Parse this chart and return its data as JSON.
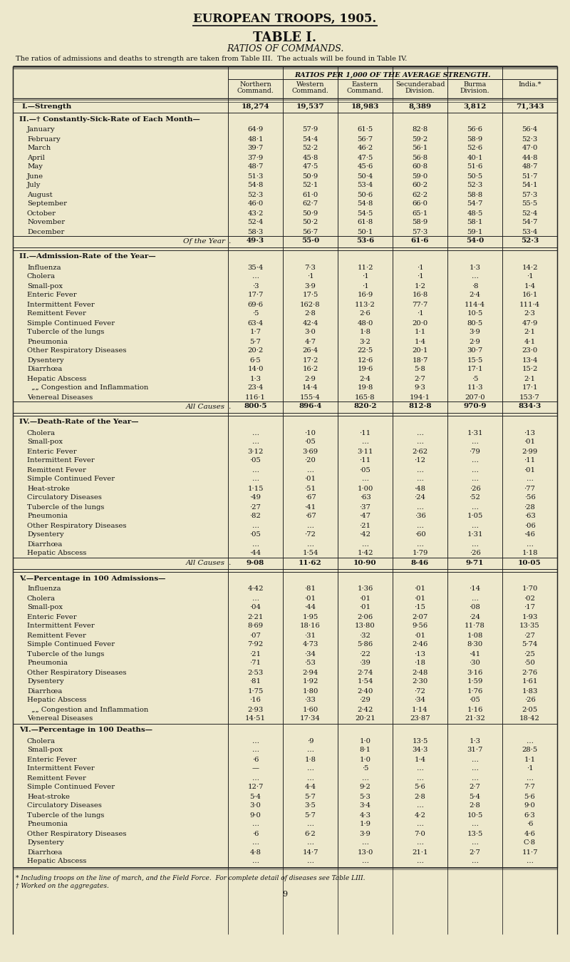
{
  "title1": "EUROPEAN TROOPS, 1905.",
  "title2": "TABLE I.",
  "subtitle": "RATIOS OF COMMANDS.",
  "note": "The ratios of admissions and deaths to strength are taken from Table III.  The actuals will be found in Table IV.",
  "col_header": "RATIOS PER 1,000 OF THE AVERAGE STRENGTH.",
  "columns": [
    "Northern\nCommand.",
    "Western\nCommand.",
    "Eastern\nCommand.",
    "Secunderabad\nDivision.",
    "Burma\nDivision.",
    "India.*"
  ],
  "bg_color": "#ede8cc",
  "sections": [
    {
      "label": "I.—Strength",
      "type": "strength",
      "dots": true,
      "values": [
        "18,274",
        "19,537",
        "18,983",
        "8,389",
        "3,812",
        "71,343"
      ]
    },
    {
      "label": "II.—† Constantly-Sick-Rate of Each Month—",
      "type": "section_header",
      "values": []
    },
    {
      "label": "January",
      "type": "data",
      "values": [
        "64·9",
        "57·9",
        "61·5",
        "82·8",
        "56·6",
        "56·4"
      ]
    },
    {
      "label": "February",
      "type": "data",
      "values": [
        "48·1",
        "54·4",
        "56·7",
        "59·2",
        "58·9",
        "52·3"
      ]
    },
    {
      "label": "March",
      "type": "data",
      "values": [
        "39·7",
        "52·2",
        "46·2",
        "56·1",
        "52·6",
        "47·0"
      ]
    },
    {
      "label": "April",
      "type": "data",
      "values": [
        "37·9",
        "45·8",
        "47·5",
        "56·8",
        "40·1",
        "44·8"
      ]
    },
    {
      "label": "May",
      "type": "data",
      "values": [
        "48·7",
        "47·5",
        "45·6",
        "60·8",
        "51·6",
        "48·7"
      ]
    },
    {
      "label": "June",
      "type": "data",
      "values": [
        "51·3",
        "50·9",
        "50·4",
        "59·0",
        "50·5",
        "51·7"
      ]
    },
    {
      "label": "July",
      "type": "data",
      "values": [
        "54·8",
        "52·1",
        "53·4",
        "60·2",
        "52·3",
        "54·1"
      ]
    },
    {
      "label": "August",
      "type": "data",
      "values": [
        "52·3",
        "61·0",
        "50·6",
        "62·2",
        "58·8",
        "57·3"
      ]
    },
    {
      "label": "September",
      "type": "data",
      "values": [
        "46·0",
        "62·7",
        "54·8",
        "66·0",
        "54·7",
        "55·5"
      ]
    },
    {
      "label": "October",
      "type": "data",
      "values": [
        "43·2",
        "50·9",
        "54·5",
        "65·1",
        "48·5",
        "52·4"
      ]
    },
    {
      "label": "November",
      "type": "data",
      "values": [
        "52·4",
        "50·2",
        "61·8",
        "58·9",
        "58·1",
        "54·7"
      ]
    },
    {
      "label": "December",
      "type": "data",
      "values": [
        "58·3",
        "56·7",
        "50·1",
        "57·3",
        "59·1",
        "53·4"
      ]
    },
    {
      "label": "Of the Year",
      "type": "subtotal",
      "values": [
        "49·3",
        "55·0",
        "53·6",
        "61·6",
        "54·0",
        "52·3"
      ]
    },
    {
      "label": "II.—Admission-Rate of the Year—",
      "type": "section_header",
      "values": []
    },
    {
      "label": "Influenza",
      "type": "data",
      "values": [
        "35·4",
        "7·3",
        "11·2",
        "·1",
        "1·3",
        "14·2"
      ]
    },
    {
      "label": "Cholera",
      "type": "data",
      "values": [
        "…",
        "·1",
        "·1",
        "·1",
        "…",
        "·1"
      ]
    },
    {
      "label": "Small-pox",
      "type": "data",
      "values": [
        "·3",
        "3·9",
        "·1",
        "1·2",
        "·8",
        "1·4"
      ]
    },
    {
      "label": "Enteric Fever",
      "type": "data",
      "values": [
        "17·7",
        "17·5",
        "16·9",
        "16·8",
        "2·4",
        "16·1"
      ]
    },
    {
      "label": "Intermittent Fever",
      "type": "data",
      "values": [
        "69·6",
        "162·8",
        "113·2",
        "77·7",
        "114·4",
        "111·4"
      ]
    },
    {
      "label": "Remittent Fever",
      "type": "data",
      "values": [
        "·5",
        "2·8",
        "2·6",
        "·1",
        "10·5",
        "2·3"
      ]
    },
    {
      "label": "Simple Continued Fever",
      "type": "data",
      "values": [
        "63·4",
        "42·4",
        "48·0",
        "20·0",
        "80·5",
        "47·9"
      ]
    },
    {
      "label": "Tubercle of the lungs",
      "type": "data",
      "values": [
        "1·7",
        "3·0",
        "1·8",
        "1·1",
        "3·9",
        "2·1"
      ]
    },
    {
      "label": "Pneumonia",
      "type": "data",
      "values": [
        "5·7",
        "4·7",
        "3·2",
        "1·4",
        "2·9",
        "4·1"
      ]
    },
    {
      "label": "Other Respiratory Diseases",
      "type": "data",
      "values": [
        "20·2",
        "26·4",
        "22·5",
        "20·1",
        "30·7",
        "23·0"
      ]
    },
    {
      "label": "Dysentery",
      "type": "data",
      "values": [
        "6·5",
        "17·2",
        "12·6",
        "18·7",
        "15·5",
        "13·4"
      ]
    },
    {
      "label": "Diarrhœa",
      "type": "data",
      "values": [
        "14·0",
        "16·2",
        "19·6",
        "5·8",
        "17·1",
        "15·2"
      ]
    },
    {
      "label": "Hepatic Abscess",
      "type": "data",
      "values": [
        "1·3",
        "2·9",
        "2·4",
        "2·7",
        "·5",
        "2·1"
      ]
    },
    {
      "label": "  „„ Congestion and Inflammation",
      "type": "data",
      "values": [
        "23·4",
        "14·4",
        "19·8",
        "9·3",
        "11·3",
        "17·1"
      ]
    },
    {
      "label": "Venereal Diseases",
      "type": "data",
      "values": [
        "116·1",
        "155·4",
        "165·8",
        "194·1",
        "207·0",
        "153·7"
      ]
    },
    {
      "label": "All Causes",
      "type": "subtotal",
      "values": [
        "800·5",
        "896·4",
        "820·2",
        "812·8",
        "970·9",
        "834·3"
      ]
    },
    {
      "label": "IV.—Death-Rate of the Year—",
      "type": "section_header",
      "values": []
    },
    {
      "label": "Cholera",
      "type": "data",
      "values": [
        "…",
        "·10",
        "·11",
        "…",
        "1·31",
        "·13"
      ]
    },
    {
      "label": "Small-pox",
      "type": "data",
      "values": [
        "…",
        "·05",
        "…",
        "…",
        "…",
        "·01"
      ]
    },
    {
      "label": "Enteric Fever",
      "type": "data",
      "values": [
        "3·12",
        "3·69",
        "3·11",
        "2·62",
        "·79",
        "2·99"
      ]
    },
    {
      "label": "Intermittent Fever",
      "type": "data",
      "values": [
        "·05",
        "·20",
        "·11",
        "·12",
        "…",
        "·11"
      ]
    },
    {
      "label": "Remittent Fever",
      "type": "data",
      "values": [
        "…",
        "…",
        "·05",
        "…",
        "…",
        "·01"
      ]
    },
    {
      "label": "Simple Continued Fever",
      "type": "data",
      "values": [
        "…",
        "·01",
        "…",
        "…",
        "…",
        "…"
      ]
    },
    {
      "label": "Heat-stroke",
      "type": "data",
      "values": [
        "1·15",
        "·51",
        "1·00",
        "·48",
        "·26",
        "·77"
      ]
    },
    {
      "label": "Circulatory Diseases",
      "type": "data",
      "values": [
        "·49",
        "·67",
        "·63",
        "·24",
        "·52",
        "·56"
      ]
    },
    {
      "label": "Tubercle of the lungs",
      "type": "data",
      "values": [
        "·27",
        "·41",
        "·37",
        "…",
        "…",
        "·28"
      ]
    },
    {
      "label": "Pneumonia",
      "type": "data",
      "values": [
        "·82",
        "·67",
        "·47",
        "·36",
        "1·05",
        "·63"
      ]
    },
    {
      "label": "Other Respiratory Diseases",
      "type": "data",
      "values": [
        "…",
        "…",
        "·21",
        "…",
        "…",
        "·06"
      ]
    },
    {
      "label": "Dysentery",
      "type": "data",
      "values": [
        "·05",
        "·72",
        "·42",
        "·60",
        "1·31",
        "·46"
      ]
    },
    {
      "label": "Diarrhœa",
      "type": "data",
      "values": [
        "…",
        "…",
        "…",
        "…",
        "…",
        "…"
      ]
    },
    {
      "label": "Hepatic Abscess",
      "type": "data",
      "values": [
        "·44",
        "1·54",
        "1·42",
        "1·79",
        "·26",
        "1·18"
      ]
    },
    {
      "label": "All Causes",
      "type": "subtotal",
      "values": [
        "9·08",
        "11·62",
        "10·90",
        "8·46",
        "9·71",
        "10·05"
      ]
    },
    {
      "label": "V.—Percentage in 100 Admissions—",
      "type": "section_header",
      "values": []
    },
    {
      "label": "Influenza",
      "type": "data",
      "values": [
        "4·42",
        "·81",
        "1·36",
        "·01",
        "·14",
        "1·70"
      ]
    },
    {
      "label": "Cholera",
      "type": "data",
      "values": [
        "…",
        "·01",
        "·01",
        "·01",
        "…",
        "·02"
      ]
    },
    {
      "label": "Small-pox",
      "type": "data",
      "values": [
        "·04",
        "·44",
        "·01",
        "·15",
        "·08",
        "·17"
      ]
    },
    {
      "label": "Enteric Fever",
      "type": "data",
      "values": [
        "2·21",
        "1·95",
        "2·06",
        "2·07",
        "·24",
        "1·93"
      ]
    },
    {
      "label": "Intermittent Fever",
      "type": "data",
      "values": [
        "8·69",
        "18·16",
        "13·80",
        "9·56",
        "11·78",
        "13·35"
      ]
    },
    {
      "label": "Remittent Fever",
      "type": "data",
      "values": [
        "·07",
        "·31",
        "·32",
        "·01",
        "1·08",
        "·27"
      ]
    },
    {
      "label": "Simple Continued Fever",
      "type": "data",
      "values": [
        "7·92",
        "4·73",
        "5·86",
        "2·46",
        "8·30",
        "5·74"
      ]
    },
    {
      "label": "Tubercle of the lungs",
      "type": "data",
      "values": [
        "·21",
        "·34",
        "·22",
        "·13",
        "·41",
        "·25"
      ]
    },
    {
      "label": "Pneumonia",
      "type": "data",
      "values": [
        "·71",
        "·53",
        "·39",
        "·18",
        "·30",
        "·50"
      ]
    },
    {
      "label": "Other Respiratory Diseases",
      "type": "data",
      "values": [
        "2·53",
        "2·94",
        "2·74",
        "2·48",
        "3·16",
        "2·76"
      ]
    },
    {
      "label": "Dysentery",
      "type": "data",
      "values": [
        "·81",
        "1·92",
        "1·54",
        "2·30",
        "1·59",
        "1·61"
      ]
    },
    {
      "label": "Diarrhœa",
      "type": "data",
      "values": [
        "1·75",
        "1·80",
        "2·40",
        "·72",
        "1·76",
        "1·83"
      ]
    },
    {
      "label": "Hepatic Abscess",
      "type": "data",
      "values": [
        "·16",
        "·33",
        "·29",
        "·34",
        "·05",
        "·26"
      ]
    },
    {
      "label": "  „„ Congestion and Inflammation",
      "type": "data",
      "values": [
        "2·93",
        "1·60",
        "2·42",
        "1·14",
        "1·16",
        "2·05"
      ]
    },
    {
      "label": "Venereal Diseases",
      "type": "data",
      "values": [
        "14·51",
        "17·34",
        "20·21",
        "23·87",
        "21·32",
        "18·42"
      ]
    },
    {
      "label": "VI.—Percentage in 100 Deaths—",
      "type": "section_header",
      "values": []
    },
    {
      "label": "Cholera",
      "type": "data",
      "values": [
        "…",
        "·9",
        "1·0",
        "13·5",
        "1·3",
        "…"
      ]
    },
    {
      "label": "Small-pox",
      "type": "data",
      "values": [
        "…",
        "…",
        "8·1",
        "34·3",
        "31·7",
        "28·5"
      ]
    },
    {
      "label": "Enteric Fever",
      "type": "data",
      "values": [
        "·6",
        "1·8",
        "1·0",
        "1·4",
        "…",
        "1·1"
      ]
    },
    {
      "label": "Intermittent Fever",
      "type": "data",
      "values": [
        "—",
        "…",
        "·5",
        "…",
        "…",
        "·1"
      ]
    },
    {
      "label": "Remittent Fever",
      "type": "data",
      "values": [
        "…",
        "…",
        "…",
        "…",
        "…",
        "…"
      ]
    },
    {
      "label": "Simple Continued Fever",
      "type": "data",
      "values": [
        "12·7",
        "4·4",
        "9·2",
        "5·6",
        "2·7",
        "7·7"
      ]
    },
    {
      "label": "Heat-stroke",
      "type": "data",
      "values": [
        "5·4",
        "5·7",
        "5·3",
        "2·8",
        "5·4",
        "5·6"
      ]
    },
    {
      "label": "Circulatory Diseases",
      "type": "data",
      "values": [
        "3·0",
        "3·5",
        "3·4",
        "…",
        "2·8",
        "9·0"
      ]
    },
    {
      "label": "Tubercle of the lungs",
      "type": "data",
      "values": [
        "9·0",
        "5·7",
        "4·3",
        "4·2",
        "10·5",
        "6·3"
      ]
    },
    {
      "label": "Pneumonia",
      "type": "data",
      "values": [
        "…",
        "…",
        "1·9",
        "…",
        "…",
        "·6"
      ]
    },
    {
      "label": "Other Respiratory Diseases",
      "type": "data",
      "values": [
        "·6",
        "6·2",
        "3·9",
        "7·0",
        "13·5",
        "4·6"
      ]
    },
    {
      "label": "Dysentery",
      "type": "data",
      "values": [
        "…",
        "…",
        "…",
        "…",
        "…",
        "C·8"
      ]
    },
    {
      "label": "Diarrhœa",
      "type": "data",
      "values": [
        "4·8",
        "14·7",
        "13·0",
        "21·1",
        "2·7",
        "11·7"
      ]
    },
    {
      "label": "Hepatic Abscess",
      "type": "data",
      "values": [
        "…",
        "…",
        "…",
        "…",
        "…",
        "…"
      ]
    }
  ],
  "footnote1": "* Including troops on the line of march, and the Field Force.  For complete detail of diseases see Table LIII.",
  "footnote2": "† Worked on the aggregates.",
  "page_number": "9"
}
